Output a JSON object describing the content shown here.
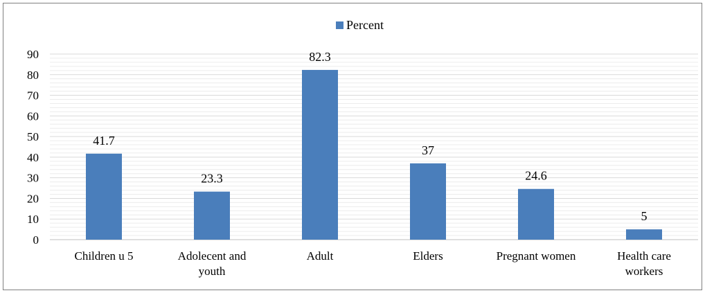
{
  "chart_data": {
    "type": "bar",
    "categories": [
      [
        "Children u 5"
      ],
      [
        "Adolecent and",
        "youth"
      ],
      [
        "Adult"
      ],
      [
        "Elders"
      ],
      [
        "Pregnant women"
      ],
      [
        "Health care",
        "workers"
      ]
    ],
    "series": [
      {
        "name": "Percent",
        "values": [
          41.7,
          23.3,
          82.3,
          37,
          24.6,
          5
        ]
      }
    ],
    "value_labels": [
      "41.7",
      "23.3",
      "82.3",
      "37",
      "24.6",
      "5"
    ],
    "y_ticks": [
      0,
      10,
      20,
      30,
      40,
      50,
      60,
      70,
      80,
      90
    ],
    "ylim": [
      0,
      90
    ],
    "grid": true,
    "legend_position": "top-center",
    "colors": {
      "bar": "#4a7ebb",
      "grid": "#d9d9d9",
      "axis": "#bfbfbf"
    }
  }
}
